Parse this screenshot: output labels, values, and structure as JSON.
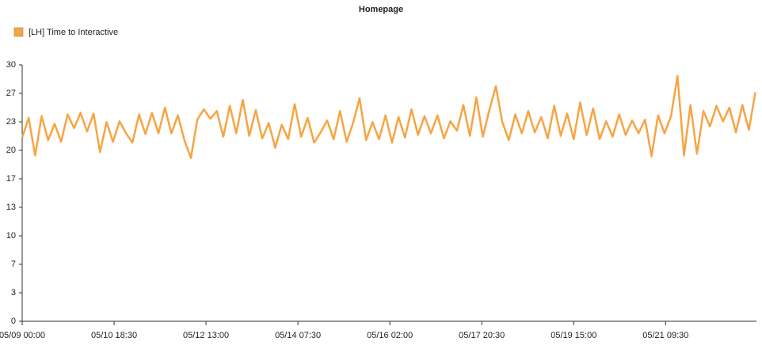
{
  "chart_data": {
    "type": "line",
    "title": "Homepage",
    "x": [
      "05/09 00:00",
      "05/09 03:00",
      "05/09 06:00",
      "05/09 09:00",
      "05/09 12:00",
      "05/09 15:00",
      "05/09 18:00",
      "05/09 21:00",
      "05/10 00:00",
      "05/10 03:00",
      "05/10 06:00",
      "05/10 09:00",
      "05/10 12:00",
      "05/10 15:00",
      "05/10 18:00",
      "05/10 21:00",
      "05/11 00:00",
      "05/11 03:00",
      "05/11 06:00",
      "05/11 09:00",
      "05/11 12:00",
      "05/11 15:00",
      "05/11 18:00",
      "05/11 21:00",
      "05/12 00:00",
      "05/12 03:00",
      "05/12 06:00",
      "05/12 09:00",
      "05/12 12:00",
      "05/12 15:00",
      "05/12 18:00",
      "05/12 21:00",
      "05/13 00:00",
      "05/13 03:00",
      "05/13 06:00",
      "05/13 09:00",
      "05/13 12:00",
      "05/13 15:00",
      "05/13 18:00",
      "05/13 21:00",
      "05/14 00:00",
      "05/14 03:00",
      "05/14 06:00",
      "05/14 09:00",
      "05/14 12:00",
      "05/14 15:00",
      "05/14 18:00",
      "05/14 21:00",
      "05/15 00:00",
      "05/15 03:00",
      "05/15 06:00",
      "05/15 09:00",
      "05/15 12:00",
      "05/15 15:00",
      "05/15 18:00",
      "05/15 21:00",
      "05/16 00:00",
      "05/16 03:00",
      "05/16 06:00",
      "05/16 09:00",
      "05/16 12:00",
      "05/16 15:00",
      "05/16 18:00",
      "05/16 21:00",
      "05/17 00:00",
      "05/17 03:00",
      "05/17 06:00",
      "05/17 09:00",
      "05/17 12:00",
      "05/17 15:00",
      "05/17 18:00",
      "05/17 21:00",
      "05/18 00:00",
      "05/18 03:00",
      "05/18 06:00",
      "05/18 09:00",
      "05/18 12:00",
      "05/18 15:00",
      "05/18 18:00",
      "05/18 21:00",
      "05/19 00:00",
      "05/19 03:00",
      "05/19 06:00",
      "05/19 09:00",
      "05/19 12:00",
      "05/19 15:00",
      "05/19 18:00",
      "05/19 21:00",
      "05/20 00:00",
      "05/20 03:00",
      "05/20 06:00",
      "05/20 09:00",
      "05/20 12:00",
      "05/20 15:00",
      "05/20 18:00",
      "05/20 21:00",
      "05/21 00:00",
      "05/21 03:00",
      "05/21 06:00",
      "05/21 09:00",
      "05/21 12:00",
      "05/21 15:00",
      "05/21 18:00",
      "05/21 21:00",
      "05/22 00:00",
      "05/22 03:00",
      "05/22 06:00",
      "05/22 09:00",
      "05/22 12:00",
      "05/22 15:00",
      "05/22 18:00",
      "05/22 21:00",
      "05/23 00:00",
      "05/23 03:00"
    ],
    "series": [
      {
        "name": "[LH] Time to Interactive",
        "color": "#f7a443",
        "values": [
          21.5,
          23.8,
          19.4,
          24.0,
          21.2,
          23.1,
          21.0,
          24.2,
          22.6,
          24.4,
          22.2,
          24.3,
          19.8,
          23.3,
          21.0,
          23.4,
          22.0,
          20.9,
          24.2,
          21.9,
          24.4,
          22.0,
          25.0,
          22.0,
          24.1,
          21.2,
          19.1,
          23.6,
          24.8,
          23.7,
          24.6,
          21.6,
          25.2,
          22.0,
          25.9,
          21.7,
          24.7,
          21.4,
          23.2,
          20.3,
          23.0,
          21.3,
          25.4,
          21.6,
          23.8,
          20.9,
          22.1,
          23.5,
          21.3,
          24.6,
          21.0,
          23.2,
          26.1,
          21.2,
          23.3,
          21.3,
          24.1,
          20.9,
          23.9,
          21.5,
          24.8,
          21.8,
          24.0,
          22.0,
          24.1,
          21.4,
          23.4,
          22.3,
          25.3,
          21.7,
          26.2,
          21.6,
          24.7,
          27.5,
          23.3,
          21.2,
          24.2,
          22.0,
          24.6,
          22.1,
          23.9,
          21.4,
          25.2,
          21.7,
          24.3,
          21.3,
          25.6,
          21.8,
          24.9,
          21.3,
          23.4,
          21.6,
          24.2,
          21.8,
          23.5,
          22.0,
          23.6,
          19.3,
          24.1,
          22.0,
          24.0,
          28.7,
          19.4,
          25.3,
          19.6,
          24.6,
          22.8,
          25.2,
          23.4,
          25.0,
          22.1,
          25.3,
          22.4,
          26.8
        ]
      }
    ],
    "xlim": [
      "05/09 00:00",
      "05/23 03:30"
    ],
    "xticks": [
      "05/09 00:00",
      "05/10 18:30",
      "05/12 13:00",
      "05/14 07:30",
      "05/16 02:00",
      "05/17 20:30",
      "05/19 15:00",
      "05/21 09:30"
    ],
    "ylim": [
      0,
      30
    ],
    "yticks": [
      0,
      {
        "value": 3.333,
        "label": "3"
      },
      {
        "value": 6.667,
        "label": "7"
      },
      10,
      {
        "value": 13.333,
        "label": "13"
      },
      {
        "value": 16.667,
        "label": "17"
      },
      20,
      {
        "value": 23.333,
        "label": "23"
      },
      {
        "value": 26.667,
        "label": "27"
      },
      30
    ],
    "grid": false,
    "legend": "top-left"
  }
}
